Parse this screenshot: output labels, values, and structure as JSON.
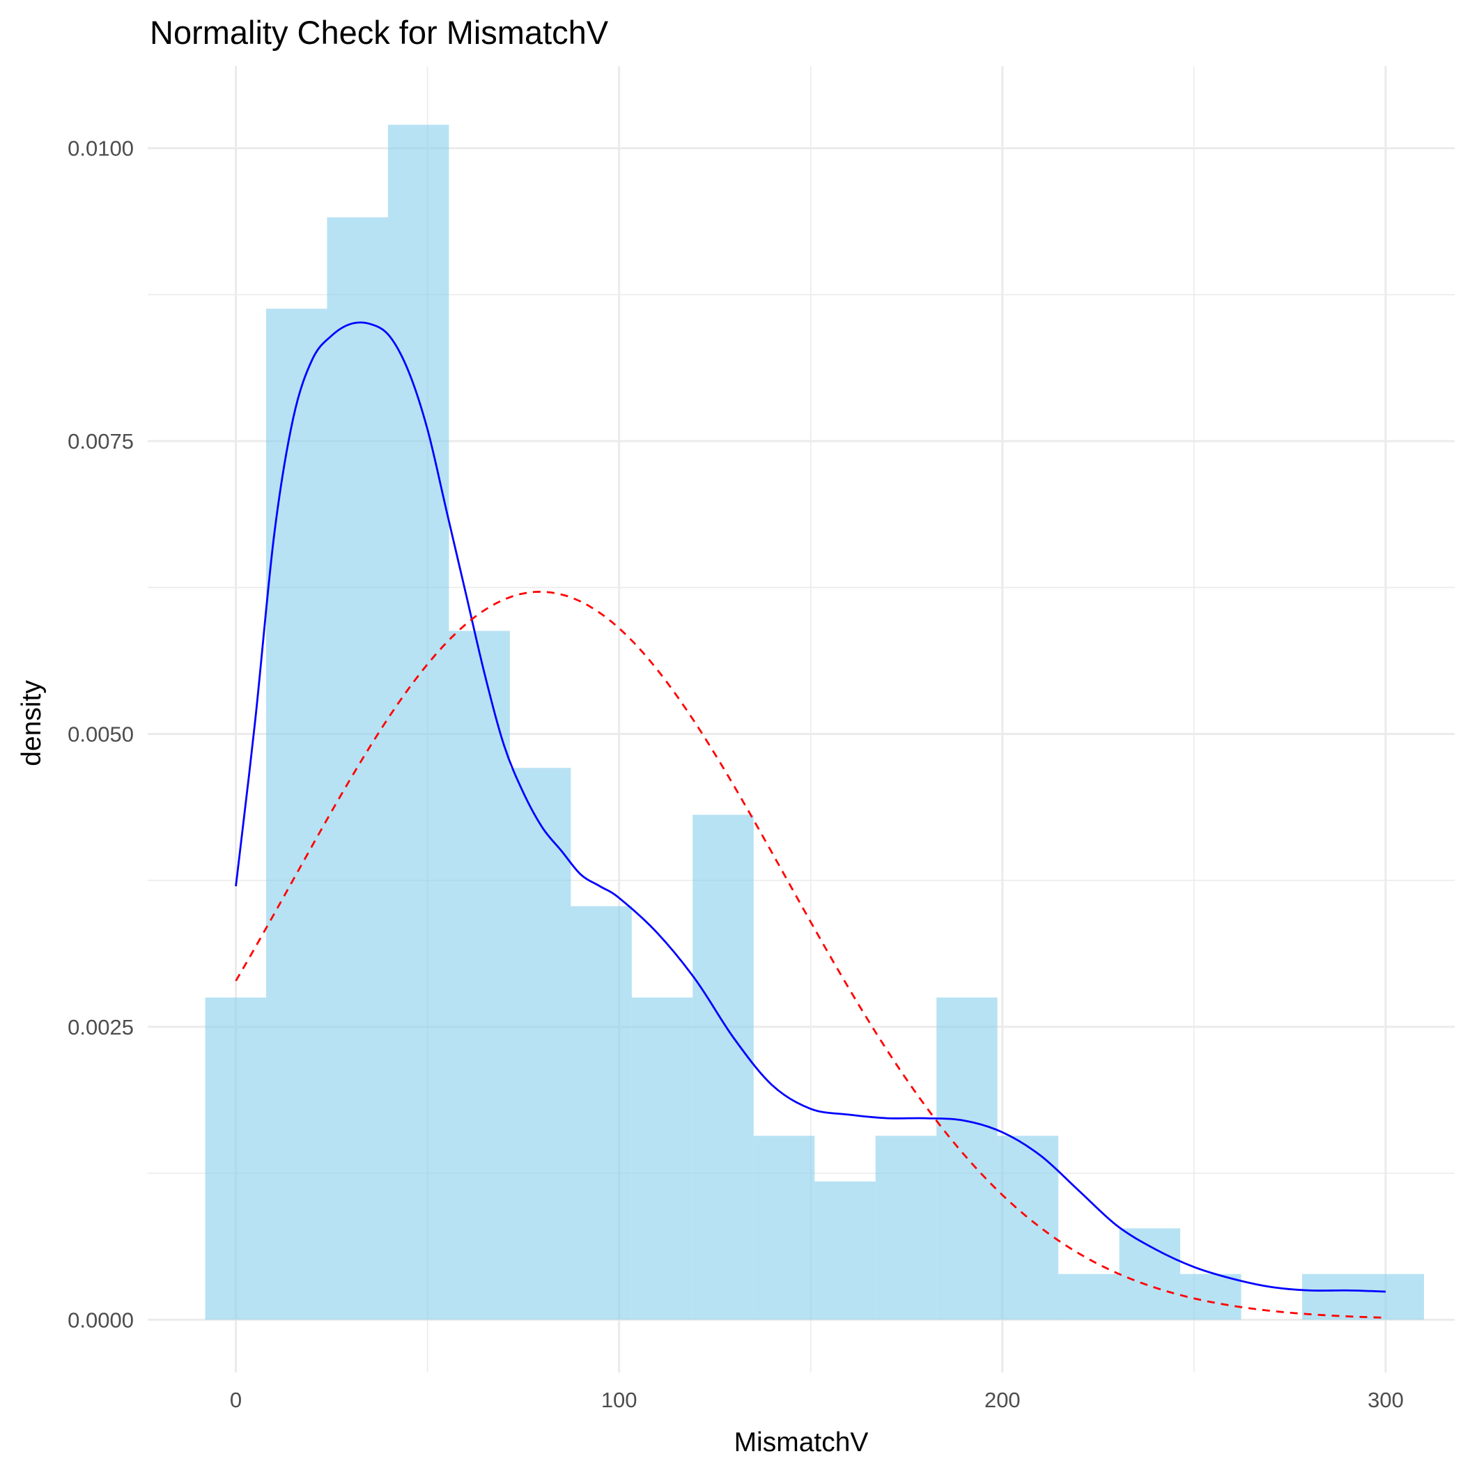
{
  "chart_data": {
    "type": "bar",
    "title": "Normality Check for MismatchV",
    "xlabel": "MismatchV",
    "ylabel": "density",
    "xlim": [
      -23,
      318
    ],
    "ylim": [
      -0.00045,
      0.0107
    ],
    "x_ticks": [
      {
        "value": 0,
        "label": "0"
      },
      {
        "value": 100,
        "label": "100"
      },
      {
        "value": 200,
        "label": "200"
      },
      {
        "value": 300,
        "label": "300"
      }
    ],
    "y_ticks": [
      {
        "value": 0,
        "label": "0.0000"
      },
      {
        "value": 0.0025,
        "label": "0.0025"
      },
      {
        "value": 0.005,
        "label": "0.0050"
      },
      {
        "value": 0.0075,
        "label": "0.0075"
      },
      {
        "value": 0.01,
        "label": "0.0100"
      }
    ],
    "grid": true,
    "histogram": {
      "color": "#87ceeb",
      "opacity": 0.6,
      "bins": [
        {
          "x0": -8.0,
          "x1": 7.9,
          "density": 0.00275
        },
        {
          "x0": 7.9,
          "x1": 23.8,
          "density": 0.00863
        },
        {
          "x0": 23.8,
          "x1": 39.7,
          "density": 0.00941
        },
        {
          "x0": 39.7,
          "x1": 55.6,
          "density": 0.0102
        },
        {
          "x0": 55.6,
          "x1": 71.5,
          "density": 0.00588
        },
        {
          "x0": 71.5,
          "x1": 87.4,
          "density": 0.00471
        },
        {
          "x0": 87.4,
          "x1": 103.3,
          "density": 0.00353
        },
        {
          "x0": 103.3,
          "x1": 119.2,
          "density": 0.00275
        },
        {
          "x0": 119.2,
          "x1": 135.1,
          "density": 0.00431
        },
        {
          "x0": 135.1,
          "x1": 151.0,
          "density": 0.00157
        },
        {
          "x0": 151.0,
          "x1": 166.9,
          "density": 0.00118
        },
        {
          "x0": 166.9,
          "x1": 182.8,
          "density": 0.00157
        },
        {
          "x0": 182.8,
          "x1": 198.7,
          "density": 0.00275
        },
        {
          "x0": 198.7,
          "x1": 214.6,
          "density": 0.00157
        },
        {
          "x0": 214.6,
          "x1": 230.5,
          "density": 0.00039
        },
        {
          "x0": 230.5,
          "x1": 246.4,
          "density": 0.00078
        },
        {
          "x0": 246.4,
          "x1": 262.3,
          "density": 0.00039
        },
        {
          "x0": 262.3,
          "x1": 278.2,
          "density": 0.0
        },
        {
          "x0": 278.2,
          "x1": 294.1,
          "density": 0.00039
        },
        {
          "x0": 294.1,
          "x1": 310.0,
          "density": 0.00039
        }
      ]
    },
    "series": [
      {
        "type": "line",
        "style": "solid",
        "color": "#0000ff",
        "x": [
          0,
          5,
          10,
          15,
          20,
          25,
          30,
          35,
          40,
          45,
          50,
          55,
          60,
          65,
          70,
          75,
          80,
          85,
          90,
          95,
          100,
          110,
          120,
          130,
          140,
          150,
          160,
          170,
          180,
          190,
          200,
          210,
          220,
          230,
          240,
          250,
          260,
          270,
          280,
          290,
          300
        ],
        "y": [
          0.0037,
          0.0051,
          0.0067,
          0.0077,
          0.0082,
          0.0084,
          0.0085,
          0.0085,
          0.0084,
          0.0081,
          0.0076,
          0.0069,
          0.0062,
          0.0055,
          0.0049,
          0.0045,
          0.0042,
          0.004,
          0.0038,
          0.0037,
          0.0036,
          0.0033,
          0.0029,
          0.0024,
          0.002,
          0.0018,
          0.00175,
          0.00172,
          0.00172,
          0.0017,
          0.0016,
          0.0014,
          0.0011,
          0.0008,
          0.0006,
          0.00045,
          0.00035,
          0.00028,
          0.00025,
          0.00025,
          0.00024
        ]
      },
      {
        "type": "line",
        "style": "dashed",
        "color": "#ff0000",
        "mean": 79.4,
        "sd": 64.2,
        "x_range": [
          0,
          300
        ]
      }
    ]
  }
}
